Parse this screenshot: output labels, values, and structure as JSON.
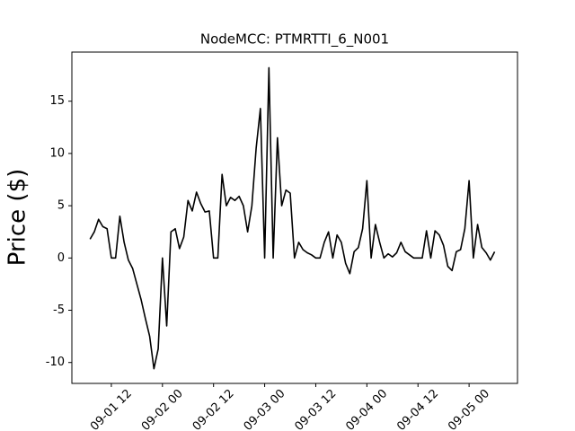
{
  "chart_data": {
    "type": "line",
    "title": "NodeMCC: PTMRTTI_6_N001",
    "ylabel": "Price ($)",
    "x": [
      "09-01 07",
      "09-01 08",
      "09-01 09",
      "09-01 10",
      "09-01 11",
      "09-01 12",
      "09-01 13",
      "09-01 14",
      "09-01 15",
      "09-01 16",
      "09-01 17",
      "09-01 18",
      "09-01 19",
      "09-01 20",
      "09-01 21",
      "09-01 22",
      "09-01 23",
      "09-02 00",
      "09-02 01",
      "09-02 02",
      "09-02 03",
      "09-02 04",
      "09-02 05",
      "09-02 06",
      "09-02 07",
      "09-02 08",
      "09-02 09",
      "09-02 10",
      "09-02 11",
      "09-02 12",
      "09-02 13",
      "09-02 14",
      "09-02 15",
      "09-02 16",
      "09-02 17",
      "09-02 18",
      "09-02 19",
      "09-02 20",
      "09-02 21",
      "09-02 22",
      "09-02 23",
      "09-03 00",
      "09-03 01",
      "09-03 02",
      "09-03 03",
      "09-03 04",
      "09-03 05",
      "09-03 06",
      "09-03 07",
      "09-03 08",
      "09-03 09",
      "09-03 10",
      "09-03 11",
      "09-03 12",
      "09-03 13",
      "09-03 14",
      "09-03 15",
      "09-03 16",
      "09-03 17",
      "09-03 18",
      "09-03 19",
      "09-03 20",
      "09-03 21",
      "09-03 22",
      "09-03 23",
      "09-04 00",
      "09-04 01",
      "09-04 02",
      "09-04 03",
      "09-04 04",
      "09-04 05",
      "09-04 06",
      "09-04 07",
      "09-04 08",
      "09-04 09",
      "09-04 10",
      "09-04 11",
      "09-04 12",
      "09-04 13",
      "09-04 14",
      "09-04 15",
      "09-04 16",
      "09-04 17",
      "09-04 18",
      "09-04 19",
      "09-04 20",
      "09-04 21",
      "09-04 22",
      "09-04 23",
      "09-05 00",
      "09-05 01",
      "09-05 02",
      "09-05 03",
      "09-05 04",
      "09-05 05",
      "09-05 06"
    ],
    "series": [
      {
        "name": "PTMRTTI_6_N001",
        "color": "#000000",
        "values": [
          1.8,
          2.5,
          3.7,
          3.0,
          2.8,
          0,
          0,
          4.0,
          1.5,
          -0.2,
          -1.0,
          -2.5,
          -4.0,
          -5.8,
          -7.5,
          -10.6,
          -8.7,
          0,
          -6.5,
          2.5,
          2.8,
          0.9,
          2.0,
          5.5,
          4.5,
          6.3,
          5.2,
          4.4,
          4.5,
          0,
          0,
          8.0,
          5.0,
          5.8,
          5.5,
          5.9,
          5.0,
          2.5,
          5.0,
          10.5,
          14.3,
          0,
          18.2,
          0,
          11.5,
          5.0,
          6.5,
          6.2,
          0,
          1.5,
          0.8,
          0.5,
          0.3,
          0,
          0,
          1.5,
          2.5,
          0,
          2.2,
          1.5,
          -0.5,
          -1.5,
          0.6,
          1.0,
          2.8,
          7.4,
          0,
          3.2,
          1.5,
          0,
          0.4,
          0.1,
          0.5,
          1.5,
          0.6,
          0.3,
          0,
          0,
          0,
          2.6,
          0,
          2.6,
          2.2,
          1.2,
          -0.8,
          -1.2,
          0.6,
          0.8,
          2.8,
          7.4,
          0,
          3.2,
          1.0,
          0.5,
          -0.2,
          0.6
        ]
      }
    ],
    "xlim": [
      "09-01 02:44",
      "09-05 11:22"
    ],
    "xticks": [
      "09-01 12",
      "09-02 00",
      "09-02 12",
      "09-03 00",
      "09-03 12",
      "09-04 00",
      "09-04 12",
      "09-05 00"
    ],
    "ylim": [
      -12.0,
      19.7
    ],
    "yticks": [
      -10,
      -5,
      0,
      5,
      10,
      15
    ]
  }
}
